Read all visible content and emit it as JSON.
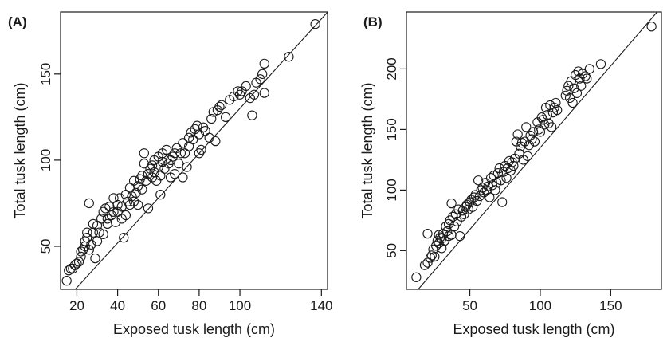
{
  "chart_data": [
    {
      "type": "scatter",
      "panel_label": "(A)",
      "xlabel": "Exposed tusk length (cm)",
      "ylabel": "Total tusk length (cm)",
      "xlim": [
        12,
        143
      ],
      "ylim": [
        25,
        186
      ],
      "xticks": [
        20,
        40,
        60,
        80,
        100,
        140
      ],
      "xtick_labels": [
        "20",
        "40",
        "60",
        "80",
        "100",
        "140"
      ],
      "yticks": [
        50,
        100,
        150
      ],
      "ytick_labels": [
        "50",
        "100",
        "150"
      ],
      "fit_line": {
        "slope": 1.3,
        "intercept": 0
      },
      "grid": false,
      "legend": "none",
      "points": [
        [
          15,
          30
        ],
        [
          16,
          36
        ],
        [
          17,
          37
        ],
        [
          18,
          37
        ],
        [
          19,
          39
        ],
        [
          20,
          40
        ],
        [
          21,
          41
        ],
        [
          22,
          44
        ],
        [
          22,
          47
        ],
        [
          23,
          48
        ],
        [
          24,
          50
        ],
        [
          24,
          53
        ],
        [
          25,
          55
        ],
        [
          25,
          58
        ],
        [
          26,
          75
        ],
        [
          26,
          48
        ],
        [
          27,
          51
        ],
        [
          28,
          58
        ],
        [
          28,
          63
        ],
        [
          29,
          43
        ],
        [
          30,
          53
        ],
        [
          30,
          62
        ],
        [
          31,
          58
        ],
        [
          32,
          66
        ],
        [
          33,
          57
        ],
        [
          33,
          70
        ],
        [
          34,
          72
        ],
        [
          35,
          63
        ],
        [
          35,
          66
        ],
        [
          36,
          73
        ],
        [
          37,
          68
        ],
        [
          38,
          70
        ],
        [
          38,
          78
        ],
        [
          39,
          64
        ],
        [
          40,
          70
        ],
        [
          40,
          74
        ],
        [
          41,
          78
        ],
        [
          42,
          66
        ],
        [
          42,
          73
        ],
        [
          43,
          55
        ],
        [
          44,
          68
        ],
        [
          44,
          80
        ],
        [
          45,
          76
        ],
        [
          46,
          74
        ],
        [
          46,
          84
        ],
        [
          47,
          79
        ],
        [
          48,
          76
        ],
        [
          48,
          88
        ],
        [
          49,
          81
        ],
        [
          50,
          74
        ],
        [
          50,
          85
        ],
        [
          51,
          89
        ],
        [
          52,
          83
        ],
        [
          52,
          91
        ],
        [
          53,
          98
        ],
        [
          53,
          104
        ],
        [
          54,
          88
        ],
        [
          55,
          92
        ],
        [
          55,
          72
        ],
        [
          56,
          95
        ],
        [
          57,
          90
        ],
        [
          57,
          97
        ],
        [
          58,
          93
        ],
        [
          58,
          100
        ],
        [
          59,
          88
        ],
        [
          60,
          96
        ],
        [
          60,
          102
        ],
        [
          61,
          80
        ],
        [
          61,
          91
        ],
        [
          62,
          99
        ],
        [
          62,
          104
        ],
        [
          63,
          95
        ],
        [
          64,
          101
        ],
        [
          64,
          106
        ],
        [
          65,
          98
        ],
        [
          66,
          100
        ],
        [
          66,
          90
        ],
        [
          67,
          102
        ],
        [
          68,
          104
        ],
        [
          68,
          92
        ],
        [
          69,
          107
        ],
        [
          70,
          98
        ],
        [
          71,
          104
        ],
        [
          72,
          90
        ],
        [
          72,
          110
        ],
        [
          73,
          104
        ],
        [
          74,
          96
        ],
        [
          75,
          113
        ],
        [
          75,
          108
        ],
        [
          76,
          116
        ],
        [
          77,
          112
        ],
        [
          78,
          118
        ],
        [
          79,
          120
        ],
        [
          80,
          104
        ],
        [
          80,
          115
        ],
        [
          81,
          106
        ],
        [
          82,
          119
        ],
        [
          83,
          117
        ],
        [
          85,
          113
        ],
        [
          86,
          124
        ],
        [
          87,
          128
        ],
        [
          88,
          111
        ],
        [
          89,
          129
        ],
        [
          90,
          131
        ],
        [
          91,
          132
        ],
        [
          93,
          125
        ],
        [
          95,
          135
        ],
        [
          97,
          137
        ],
        [
          99,
          140
        ],
        [
          100,
          138
        ],
        [
          101,
          140
        ],
        [
          103,
          143
        ],
        [
          105,
          136
        ],
        [
          106,
          126
        ],
        [
          107,
          138
        ],
        [
          108,
          145
        ],
        [
          110,
          147
        ],
        [
          111,
          150
        ],
        [
          112,
          139
        ],
        [
          112,
          156
        ],
        [
          124,
          160
        ],
        [
          137,
          179
        ]
      ]
    },
    {
      "type": "scatter",
      "panel_label": "(B)",
      "xlabel": "Exposed tusk length (cm)",
      "ylabel": "Total tusk length (cm)",
      "xlim": [
        5,
        186
      ],
      "ylim": [
        18,
        247
      ],
      "xticks": [
        50,
        100,
        150
      ],
      "xtick_labels": [
        "50",
        "100",
        "150"
      ],
      "yticks": [
        50,
        100,
        150,
        200
      ],
      "ytick_labels": [
        "50",
        "100",
        "150",
        "200"
      ],
      "fit_line": {
        "slope": 1.35,
        "intercept": 0
      },
      "grid": false,
      "legend": "none",
      "points": [
        [
          12,
          28
        ],
        [
          18,
          38
        ],
        [
          20,
          40
        ],
        [
          20,
          64
        ],
        [
          22,
          44
        ],
        [
          23,
          46
        ],
        [
          24,
          51
        ],
        [
          25,
          45
        ],
        [
          26,
          54
        ],
        [
          27,
          58
        ],
        [
          28,
          56
        ],
        [
          28,
          63
        ],
        [
          29,
          61
        ],
        [
          30,
          52
        ],
        [
          30,
          60
        ],
        [
          31,
          64
        ],
        [
          32,
          58
        ],
        [
          33,
          70
        ],
        [
          34,
          66
        ],
        [
          35,
          62
        ],
        [
          35,
          72
        ],
        [
          36,
          75
        ],
        [
          37,
          89
        ],
        [
          37,
          63
        ],
        [
          38,
          78
        ],
        [
          39,
          70
        ],
        [
          40,
          80
        ],
        [
          41,
          74
        ],
        [
          42,
          84
        ],
        [
          43,
          62
        ],
        [
          44,
          78
        ],
        [
          45,
          83
        ],
        [
          46,
          80
        ],
        [
          47,
          86
        ],
        [
          48,
          88
        ],
        [
          49,
          84
        ],
        [
          50,
          90
        ],
        [
          51,
          92
        ],
        [
          52,
          86
        ],
        [
          53,
          94
        ],
        [
          54,
          96
        ],
        [
          55,
          91
        ],
        [
          56,
          108
        ],
        [
          57,
          95
        ],
        [
          58,
          100
        ],
        [
          59,
          102
        ],
        [
          60,
          98
        ],
        [
          61,
          106
        ],
        [
          62,
          100
        ],
        [
          63,
          103
        ],
        [
          64,
          94
        ],
        [
          65,
          110
        ],
        [
          66,
          104
        ],
        [
          67,
          112
        ],
        [
          68,
          100
        ],
        [
          69,
          106
        ],
        [
          70,
          114
        ],
        [
          71,
          118
        ],
        [
          72,
          108
        ],
        [
          73,
          90
        ],
        [
          74,
          115
        ],
        [
          75,
          120
        ],
        [
          76,
          110
        ],
        [
          77,
          118
        ],
        [
          78,
          124
        ],
        [
          79,
          116
        ],
        [
          80,
          123
        ],
        [
          81,
          120
        ],
        [
          82,
          126
        ],
        [
          83,
          140
        ],
        [
          84,
          146
        ],
        [
          85,
          130
        ],
        [
          86,
          136
        ],
        [
          87,
          139
        ],
        [
          88,
          125
        ],
        [
          89,
          140
        ],
        [
          90,
          152
        ],
        [
          91,
          128
        ],
        [
          92,
          137
        ],
        [
          93,
          145
        ],
        [
          94,
          142
        ],
        [
          95,
          148
        ],
        [
          96,
          140
        ],
        [
          98,
          156
        ],
        [
          99,
          150
        ],
        [
          100,
          148
        ],
        [
          101,
          160
        ],
        [
          102,
          158
        ],
        [
          103,
          154
        ],
        [
          104,
          168
        ],
        [
          105,
          162
        ],
        [
          106,
          155
        ],
        [
          107,
          170
        ],
        [
          108,
          152
        ],
        [
          109,
          164
        ],
        [
          110,
          168
        ],
        [
          111,
          172
        ],
        [
          112,
          166
        ],
        [
          118,
          178
        ],
        [
          119,
          182
        ],
        [
          120,
          186
        ],
        [
          121,
          176
        ],
        [
          122,
          190
        ],
        [
          123,
          172
        ],
        [
          124,
          184
        ],
        [
          125,
          195
        ],
        [
          126,
          180
        ],
        [
          127,
          198
        ],
        [
          128,
          192
        ],
        [
          129,
          186
        ],
        [
          130,
          196
        ],
        [
          132,
          194
        ],
        [
          133,
          192
        ],
        [
          135,
          200
        ],
        [
          143,
          204
        ],
        [
          179,
          235
        ]
      ]
    }
  ]
}
